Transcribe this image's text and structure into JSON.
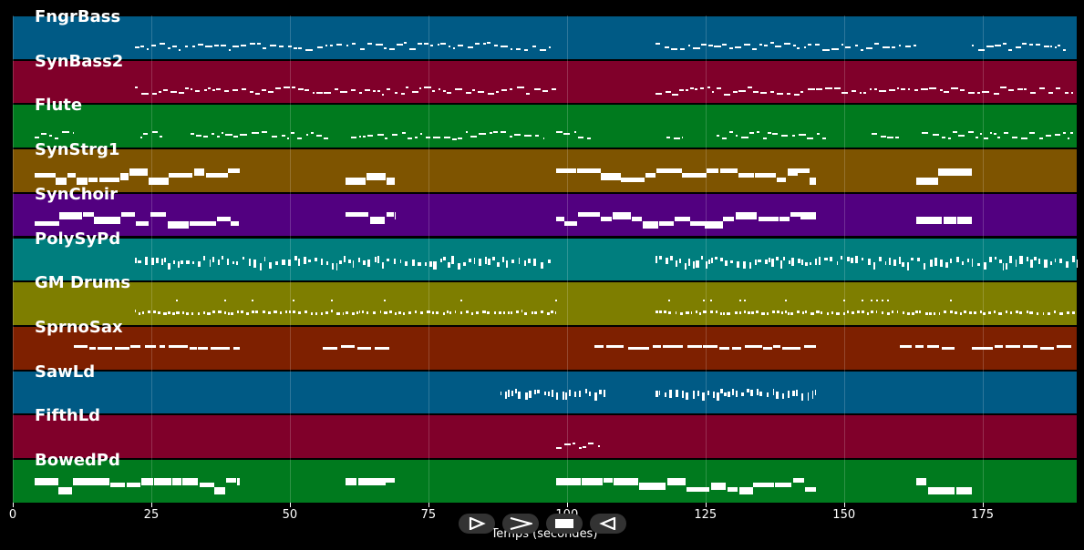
{
  "chart_data": {
    "type": "piano-roll",
    "xlabel": "Temps (secondes)",
    "xlim": [
      0,
      192
    ],
    "xticks": [
      0,
      25,
      50,
      75,
      100,
      125,
      150,
      175
    ],
    "tracks": [
      {
        "name": "FngrBass",
        "color": "#005a85",
        "style": "sparse",
        "segments": [
          [
            22,
            97
          ],
          [
            116,
            163
          ],
          [
            173,
            190
          ]
        ]
      },
      {
        "name": "SynBass2",
        "color": "#80002a",
        "style": "sparse",
        "segments": [
          [
            22,
            98
          ],
          [
            116,
            192
          ]
        ]
      },
      {
        "name": "Flute",
        "color": "#007a1e",
        "style": "sparse",
        "segments": [
          [
            4,
            11
          ],
          [
            23,
            27
          ],
          [
            32,
            57
          ],
          [
            61,
            96
          ],
          [
            98,
            105
          ],
          [
            118,
            121
          ],
          [
            127,
            147
          ],
          [
            155,
            160
          ],
          [
            164,
            192
          ]
        ]
      },
      {
        "name": "SynStrg1",
        "color": "#7e5400",
        "style": "blocks",
        "segments": [
          [
            4,
            41
          ],
          [
            60,
            69
          ],
          [
            98,
            145
          ],
          [
            163,
            173
          ]
        ]
      },
      {
        "name": "SynChoir",
        "color": "#520080",
        "style": "blocks",
        "segments": [
          [
            4,
            41
          ],
          [
            60,
            69
          ],
          [
            98,
            145
          ],
          [
            163,
            173
          ]
        ]
      },
      {
        "name": "PolySyPd",
        "color": "#007e7e",
        "style": "dense",
        "segments": [
          [
            22,
            97
          ],
          [
            116,
            192
          ]
        ]
      },
      {
        "name": "GM Drums",
        "color": "#7e7e00",
        "style": "drums",
        "segments": [
          [
            22,
            98
          ],
          [
            116,
            192
          ]
        ]
      },
      {
        "name": "SprnoSax",
        "color": "#7e2000",
        "style": "lines",
        "segments": [
          [
            11,
            41
          ],
          [
            56,
            68
          ],
          [
            105,
            145
          ],
          [
            160,
            170
          ],
          [
            173,
            191
          ]
        ]
      },
      {
        "name": "SawLd",
        "color": "#005a85",
        "style": "lead",
        "segments": [
          [
            88,
            107
          ],
          [
            116,
            145
          ]
        ]
      },
      {
        "name": "FifthLd",
        "color": "#80002a",
        "style": "sparse",
        "segments": [
          [
            98,
            106
          ]
        ]
      },
      {
        "name": "BowedPd",
        "color": "#007a1e",
        "style": "blocks",
        "segments": [
          [
            4,
            41
          ],
          [
            60,
            69
          ],
          [
            98,
            145
          ],
          [
            163,
            173
          ]
        ]
      }
    ]
  },
  "controls": [
    {
      "name": "play-button",
      "icon": "play-icon"
    },
    {
      "name": "forward-button",
      "icon": "forward-icon"
    },
    {
      "name": "stop-button",
      "icon": "stop-icon"
    },
    {
      "name": "back-button",
      "icon": "back-icon"
    }
  ]
}
